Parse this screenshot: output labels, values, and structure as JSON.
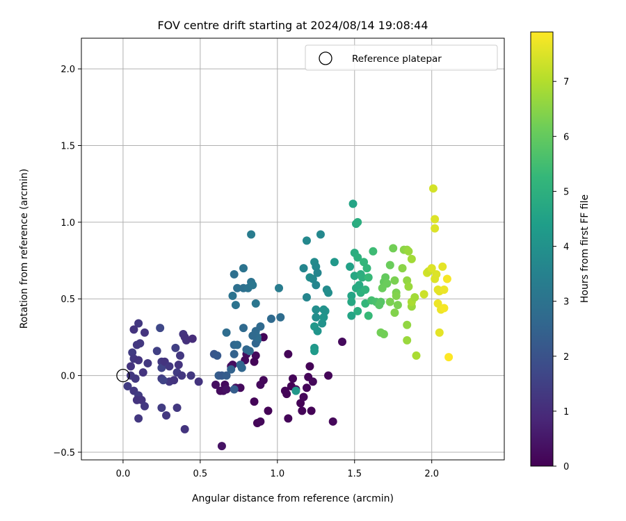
{
  "chart_data": {
    "type": "scatter",
    "title": "FOV centre drift starting at 2024/08/14 19:08:44",
    "xlabel": "Angular distance from reference (arcmin)",
    "ylabel": "Rotation from reference (arcmin)",
    "xlim": [
      -0.27,
      2.47
    ],
    "ylim": [
      -0.55,
      2.2
    ],
    "xticks": [
      0.0,
      0.5,
      1.0,
      1.5,
      2.0
    ],
    "xtick_labels": [
      "0.0",
      "0.5",
      "1.0",
      "1.5",
      "2.0"
    ],
    "yticks": [
      -0.5,
      0.0,
      0.5,
      1.0,
      1.5,
      2.0
    ],
    "ytick_labels": [
      "−0.5",
      "0.0",
      "0.5",
      "1.0",
      "1.5",
      "2.0"
    ],
    "grid": true,
    "legend": {
      "position": "top-right",
      "entries": [
        "Reference platepar"
      ]
    },
    "reference_point": {
      "x": 0.0,
      "y": 0.0,
      "marker": "open-circle"
    },
    "colorbar": {
      "label": "Hours from first FF file",
      "range": [
        0,
        7.9
      ],
      "ticks": [
        0,
        1,
        2,
        3,
        4,
        5,
        6,
        7
      ],
      "tick_labels": [
        "0",
        "1",
        "2",
        "3",
        "4",
        "5",
        "6",
        "7"
      ],
      "colormap": "viridis"
    },
    "points": [
      [
        0.94,
        -0.23,
        0.05
      ],
      [
        0.85,
        -0.17,
        0.1
      ],
      [
        0.87,
        -0.31,
        0.1
      ],
      [
        0.89,
        -0.3,
        0.15
      ],
      [
        0.89,
        -0.06,
        0.2
      ],
      [
        0.91,
        -0.03,
        0.15
      ],
      [
        0.91,
        0.25,
        0.1
      ],
      [
        0.86,
        0.13,
        0.2
      ],
      [
        0.85,
        0.09,
        0.1
      ],
      [
        0.8,
        0.14,
        0.25
      ],
      [
        0.79,
        0.1,
        0.2
      ],
      [
        0.76,
        -0.08,
        0.2
      ],
      [
        0.73,
        -0.08,
        0.3
      ],
      [
        0.71,
        0.07,
        0.25
      ],
      [
        0.7,
        0.06,
        0.3
      ],
      [
        0.66,
        -0.06,
        0.2
      ],
      [
        0.65,
        -0.1,
        0.3
      ],
      [
        0.63,
        -0.1,
        0.25
      ],
      [
        0.6,
        -0.06,
        0.3
      ],
      [
        0.64,
        -0.46,
        0.4
      ],
      [
        0.67,
        -0.09,
        0.35
      ],
      [
        1.05,
        -0.1,
        0.1
      ],
      [
        1.06,
        -0.12,
        0.1
      ],
      [
        1.09,
        -0.07,
        0.05
      ],
      [
        1.1,
        -0.02,
        0.1
      ],
      [
        1.12,
        -0.09,
        0.15
      ],
      [
        1.15,
        -0.18,
        0.05
      ],
      [
        1.16,
        -0.23,
        0.1
      ],
      [
        1.17,
        -0.14,
        0.15
      ],
      [
        1.19,
        -0.08,
        0.1
      ],
      [
        1.2,
        -0.01,
        0.1
      ],
      [
        1.22,
        -0.23,
        0.05
      ],
      [
        1.23,
        -0.04,
        0.15
      ],
      [
        1.07,
        -0.28,
        0.1
      ],
      [
        1.07,
        0.14,
        0.1
      ],
      [
        1.21,
        0.06,
        0.05
      ],
      [
        1.33,
        0.0,
        0.1
      ],
      [
        1.36,
        -0.3,
        0.15
      ],
      [
        1.42,
        0.22,
        0.2
      ],
      [
        0.1,
        0.34,
        1.3
      ],
      [
        0.07,
        0.3,
        1.2
      ],
      [
        0.09,
        0.2,
        1.3
      ],
      [
        0.11,
        0.21,
        1.3
      ],
      [
        0.14,
        0.28,
        1.2
      ],
      [
        0.06,
        0.15,
        1.4
      ],
      [
        0.07,
        0.11,
        1.3
      ],
      [
        0.1,
        0.1,
        1.2
      ],
      [
        0.05,
        0.06,
        1.2
      ],
      [
        0.05,
        0.0,
        1.3
      ],
      [
        0.03,
        -0.07,
        1.4
      ],
      [
        0.08,
        -0.02,
        1.3
      ],
      [
        0.13,
        0.02,
        1.2
      ],
      [
        0.16,
        0.08,
        1.3
      ],
      [
        0.07,
        -0.1,
        1.3
      ],
      [
        0.1,
        -0.13,
        1.4
      ],
      [
        0.09,
        -0.16,
        1.2
      ],
      [
        0.12,
        -0.16,
        1.2
      ],
      [
        0.14,
        -0.2,
        1.3
      ],
      [
        0.1,
        -0.28,
        1.3
      ],
      [
        0.22,
        0.16,
        1.5
      ],
      [
        0.25,
        0.09,
        1.3
      ],
      [
        0.25,
        0.05,
        1.6
      ],
      [
        0.25,
        -0.02,
        1.4
      ],
      [
        0.25,
        -0.21,
        1.4
      ],
      [
        0.28,
        -0.26,
        1.3
      ],
      [
        0.27,
        0.09,
        1.2
      ],
      [
        0.3,
        0.06,
        1.3
      ],
      [
        0.3,
        -0.04,
        1.3
      ],
      [
        0.33,
        -0.03,
        1.2
      ],
      [
        0.34,
        0.18,
        1.5
      ],
      [
        0.35,
        0.02,
        1.4
      ],
      [
        0.36,
        0.07,
        1.2
      ],
      [
        0.37,
        0.13,
        1.3
      ],
      [
        0.38,
        0.0,
        1.3
      ],
      [
        0.35,
        -0.21,
        1.3
      ],
      [
        0.39,
        0.27,
        1.2
      ],
      [
        0.4,
        0.25,
        1.1
      ],
      [
        0.41,
        0.23,
        1.1
      ],
      [
        0.44,
        0.0,
        1.3
      ],
      [
        0.45,
        0.24,
        1.0
      ],
      [
        0.4,
        -0.35,
        1.2
      ],
      [
        0.49,
        -0.04,
        1.2
      ],
      [
        0.24,
        0.31,
        1.7
      ],
      [
        0.26,
        -0.03,
        1.6
      ],
      [
        0.59,
        0.14,
        2.1
      ],
      [
        0.61,
        0.13,
        2.2
      ],
      [
        0.62,
        0.0,
        2.3
      ],
      [
        0.64,
        0.0,
        2.2
      ],
      [
        0.67,
        0.0,
        2.3
      ],
      [
        0.67,
        0.28,
        2.8
      ],
      [
        0.72,
        -0.09,
        2.3
      ],
      [
        0.72,
        0.2,
        2.6
      ],
      [
        0.72,
        0.14,
        2.5
      ],
      [
        0.7,
        0.04,
        2.5
      ],
      [
        0.74,
        0.2,
        2.7
      ],
      [
        0.77,
        0.05,
        2.6
      ],
      [
        0.78,
        0.31,
        2.7
      ],
      [
        0.8,
        0.17,
        2.6
      ],
      [
        0.82,
        0.16,
        2.7
      ],
      [
        0.76,
        0.07,
        2.6
      ],
      [
        0.86,
        0.29,
        2.7
      ],
      [
        0.87,
        0.23,
        2.8
      ],
      [
        0.86,
        0.21,
        2.6
      ],
      [
        0.89,
        0.32,
        2.7
      ],
      [
        0.87,
        0.25,
        2.8
      ],
      [
        0.84,
        0.26,
        2.7
      ],
      [
        0.96,
        0.37,
        2.7
      ],
      [
        1.02,
        0.38,
        2.8
      ],
      [
        0.71,
        0.52,
        3.0
      ],
      [
        0.73,
        0.46,
        3.0
      ],
      [
        0.74,
        0.57,
        2.9
      ],
      [
        0.72,
        0.66,
        2.9
      ],
      [
        0.78,
        0.7,
        3.0
      ],
      [
        0.78,
        0.57,
        2.9
      ],
      [
        0.81,
        0.57,
        3.0
      ],
      [
        0.83,
        0.61,
        3.0
      ],
      [
        0.84,
        0.59,
        3.1
      ],
      [
        0.86,
        0.47,
        3.1
      ],
      [
        0.83,
        0.92,
        3.3
      ],
      [
        1.01,
        0.57,
        3.3
      ],
      [
        1.12,
        -0.1,
        4.2
      ],
      [
        1.17,
        0.7,
        3.6
      ],
      [
        1.19,
        0.88,
        3.7
      ],
      [
        1.19,
        0.51,
        3.6
      ],
      [
        1.21,
        0.64,
        3.9
      ],
      [
        1.23,
        0.63,
        3.7
      ],
      [
        1.24,
        0.74,
        3.8
      ],
      [
        1.25,
        0.71,
        3.7
      ],
      [
        1.26,
        0.67,
        3.6
      ],
      [
        1.25,
        0.59,
        3.6
      ],
      [
        1.25,
        0.43,
        3.9
      ],
      [
        1.25,
        0.38,
        3.9
      ],
      [
        1.24,
        0.32,
        4.2
      ],
      [
        1.26,
        0.29,
        4.1
      ],
      [
        1.24,
        0.18,
        4.2
      ],
      [
        1.24,
        0.16,
        4.3
      ],
      [
        1.29,
        0.34,
        4.0
      ],
      [
        1.3,
        0.43,
        4.0
      ],
      [
        1.31,
        0.42,
        4.0
      ],
      [
        1.32,
        0.56,
        3.8
      ],
      [
        1.33,
        0.54,
        3.9
      ],
      [
        1.28,
        0.92,
        3.7
      ],
      [
        1.3,
        0.38,
        4.1
      ],
      [
        1.37,
        0.74,
        4.2
      ],
      [
        1.47,
        0.71,
        4.5
      ],
      [
        1.48,
        0.52,
        4.6
      ],
      [
        1.48,
        0.48,
        4.7
      ],
      [
        1.48,
        0.39,
        4.6
      ],
      [
        1.49,
        1.12,
        4.6
      ],
      [
        1.5,
        0.65,
        4.7
      ],
      [
        1.5,
        0.8,
        4.9
      ],
      [
        1.51,
        0.99,
        4.8
      ],
      [
        1.52,
        1.0,
        4.9
      ],
      [
        1.51,
        0.57,
        4.8
      ],
      [
        1.52,
        0.77,
        5.0
      ],
      [
        1.52,
        0.42,
        4.9
      ],
      [
        1.53,
        0.59,
        4.8
      ],
      [
        1.54,
        0.54,
        5.0
      ],
      [
        1.54,
        0.66,
        4.9
      ],
      [
        1.55,
        0.64,
        5.0
      ],
      [
        1.56,
        0.74,
        5.2
      ],
      [
        1.57,
        0.56,
        5.1
      ],
      [
        1.57,
        0.47,
        5.2
      ],
      [
        1.58,
        0.7,
        5.2
      ],
      [
        1.59,
        0.64,
        5.3
      ],
      [
        1.59,
        0.39,
        5.3
      ],
      [
        1.61,
        0.49,
        5.5
      ],
      [
        1.62,
        0.81,
        5.4
      ],
      [
        1.64,
        0.48,
        5.6
      ],
      [
        1.66,
        0.46,
        5.8
      ],
      [
        1.67,
        0.48,
        5.8
      ],
      [
        1.67,
        0.28,
        6.2
      ],
      [
        1.69,
        0.27,
        6.2
      ],
      [
        1.69,
        0.61,
        6.0
      ],
      [
        1.68,
        0.57,
        6.1
      ],
      [
        1.7,
        0.64,
        6.0
      ],
      [
        1.71,
        0.6,
        6.1
      ],
      [
        1.73,
        0.48,
        6.3
      ],
      [
        1.73,
        0.72,
        6.1
      ],
      [
        1.75,
        0.83,
        6.2
      ],
      [
        1.76,
        0.62,
        6.3
      ],
      [
        1.76,
        0.41,
        6.4
      ],
      [
        1.77,
        0.54,
        6.3
      ],
      [
        1.77,
        0.52,
        6.4
      ],
      [
        1.78,
        0.46,
        6.3
      ],
      [
        1.81,
        0.7,
        6.5
      ],
      [
        1.82,
        0.82,
        6.5
      ],
      [
        1.84,
        0.82,
        6.6
      ],
      [
        1.84,
        0.62,
        6.6
      ],
      [
        1.84,
        0.33,
        6.6
      ],
      [
        1.84,
        0.23,
        6.7
      ],
      [
        1.85,
        0.81,
        6.7
      ],
      [
        1.85,
        0.58,
        6.7
      ],
      [
        1.87,
        0.76,
        6.8
      ],
      [
        1.87,
        0.45,
        6.7
      ],
      [
        1.87,
        0.48,
        6.9
      ],
      [
        1.89,
        0.51,
        6.8
      ],
      [
        1.9,
        0.13,
        6.9
      ],
      [
        1.95,
        0.53,
        7.3
      ],
      [
        1.97,
        0.67,
        7.4
      ],
      [
        1.98,
        0.68,
        7.3
      ],
      [
        2.0,
        0.7,
        7.5
      ],
      [
        2.01,
        1.22,
        7.4
      ],
      [
        2.02,
        1.02,
        7.5
      ],
      [
        2.02,
        0.96,
        7.5
      ],
      [
        2.02,
        0.63,
        7.5
      ],
      [
        2.03,
        0.66,
        7.5
      ],
      [
        2.04,
        0.56,
        7.6
      ],
      [
        2.04,
        0.47,
        7.7
      ],
      [
        2.05,
        0.55,
        7.6
      ],
      [
        2.05,
        0.28,
        7.6
      ],
      [
        2.06,
        0.43,
        7.7
      ],
      [
        2.07,
        0.71,
        7.6
      ],
      [
        2.08,
        0.56,
        7.7
      ],
      [
        2.08,
        0.44,
        7.8
      ],
      [
        2.1,
        0.63,
        7.8
      ],
      [
        2.11,
        0.12,
        7.9
      ]
    ]
  }
}
